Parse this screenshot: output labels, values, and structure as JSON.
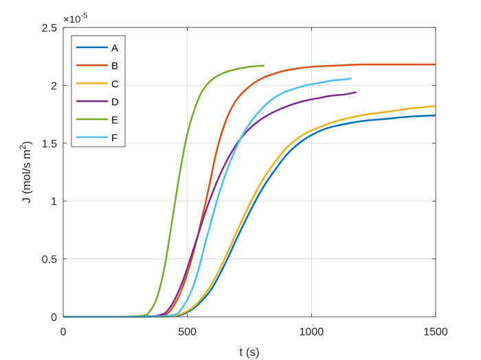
{
  "chart_data": {
    "type": "line",
    "xlabel": "t (s)",
    "ylabel_main": "J (mol/s m",
    "ylabel_sup": "2",
    "ylabel_close": ")",
    "xlim": [
      0,
      1500
    ],
    "ylim": [
      0,
      2.5
    ],
    "y_scale_multiplier": "×10",
    "y_scale_exponent": "-5",
    "grid": true,
    "legend_position": "top-left",
    "x_ticks": [
      0,
      500,
      1000,
      1500
    ],
    "x_tick_labels": [
      "0",
      "500",
      "1000",
      "1500"
    ],
    "y_ticks": [
      0,
      0.5,
      1,
      1.5,
      2,
      2.5
    ],
    "y_tick_labels": [
      "0",
      "0.5",
      "1",
      "1.5",
      "2",
      "2.5"
    ],
    "series": [
      {
        "name": "A",
        "color": "#0072BD",
        "x": [
          0,
          250,
          440,
          500,
          550,
          600,
          650,
          700,
          750,
          800,
          850,
          900,
          950,
          1000,
          1050,
          1100,
          1200,
          1300,
          1400,
          1500
        ],
        "y": [
          0,
          0,
          0.005,
          0.04,
          0.12,
          0.25,
          0.45,
          0.68,
          0.9,
          1.1,
          1.26,
          1.4,
          1.5,
          1.57,
          1.62,
          1.65,
          1.69,
          1.71,
          1.73,
          1.74
        ]
      },
      {
        "name": "B",
        "color": "#D95319",
        "x": [
          0,
          250,
          380,
          430,
          480,
          530,
          580,
          620,
          660,
          700,
          750,
          800,
          850,
          900,
          1000,
          1100,
          1200,
          1300,
          1400,
          1500
        ],
        "y": [
          0,
          0,
          0.005,
          0.05,
          0.25,
          0.6,
          1.05,
          1.45,
          1.72,
          1.88,
          1.99,
          2.06,
          2.1,
          2.13,
          2.16,
          2.17,
          2.18,
          2.18,
          2.18,
          2.18
        ]
      },
      {
        "name": "C",
        "color": "#EDB120",
        "x": [
          0,
          250,
          430,
          500,
          550,
          600,
          650,
          700,
          750,
          800,
          850,
          900,
          950,
          1000,
          1100,
          1200,
          1300,
          1400,
          1500
        ],
        "y": [
          0,
          0,
          0.005,
          0.05,
          0.14,
          0.29,
          0.5,
          0.74,
          0.97,
          1.17,
          1.33,
          1.46,
          1.55,
          1.61,
          1.69,
          1.74,
          1.77,
          1.8,
          1.82
        ]
      },
      {
        "name": "D",
        "color": "#7E2F8E",
        "x": [
          0,
          250,
          380,
          430,
          480,
          530,
          580,
          630,
          680,
          730,
          780,
          830,
          880,
          930,
          980,
          1030,
          1080,
          1130,
          1180
        ],
        "y": [
          0,
          0,
          0.01,
          0.08,
          0.3,
          0.62,
          0.95,
          1.22,
          1.43,
          1.58,
          1.68,
          1.75,
          1.8,
          1.84,
          1.87,
          1.89,
          1.91,
          1.92,
          1.94
        ]
      },
      {
        "name": "E",
        "color": "#77AC30",
        "x": [
          0,
          200,
          320,
          350,
          380,
          410,
          440,
          470,
          500,
          530,
          560,
          600,
          650,
          700,
          750,
          810
        ],
        "y": [
          0,
          0,
          0.01,
          0.05,
          0.18,
          0.45,
          0.85,
          1.25,
          1.58,
          1.8,
          1.95,
          2.05,
          2.11,
          2.14,
          2.16,
          2.17
        ]
      },
      {
        "name": "F",
        "color": "#4DBEEE",
        "x": [
          0,
          250,
          430,
          480,
          530,
          580,
          630,
          680,
          730,
          780,
          830,
          880,
          930,
          980,
          1030,
          1080,
          1130,
          1160
        ],
        "y": [
          0,
          0,
          0.01,
          0.08,
          0.3,
          0.7,
          1.08,
          1.38,
          1.6,
          1.75,
          1.86,
          1.93,
          1.97,
          2.0,
          2.02,
          2.04,
          2.05,
          2.06
        ]
      }
    ]
  }
}
